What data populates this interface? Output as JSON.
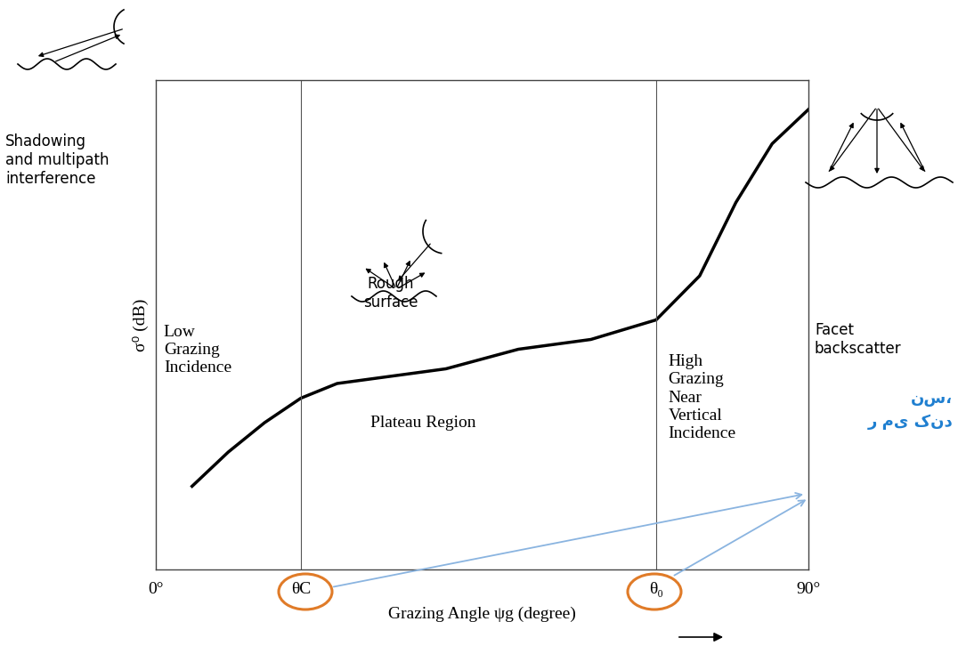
{
  "chart_data": {
    "type": "line",
    "x": [
      5,
      10,
      15,
      20,
      25,
      30,
      40,
      50,
      60,
      69,
      75,
      80,
      85,
      90
    ],
    "values": [
      1.7,
      2.4,
      3.0,
      3.5,
      3.8,
      3.9,
      4.1,
      4.5,
      4.7,
      5.1,
      6.0,
      7.5,
      8.7,
      9.4
    ],
    "color": "#000000",
    "xlim": [
      0,
      90
    ],
    "ylim": [
      0,
      10
    ],
    "xticks": [
      {
        "value": 0,
        "label": "0°"
      },
      {
        "value": 20,
        "label": "θC"
      },
      {
        "value": 69,
        "label": "θ₀"
      },
      {
        "value": 90,
        "label": "90°"
      }
    ],
    "tick_labels": "x",
    "x_label": "Grazing Angle ψg (degree)",
    "y_label": "σ⁰ (dB)",
    "annotations": [
      {
        "text": "Low\nGrazing\nIncidence"
      },
      {
        "text": "Plateau Region"
      },
      {
        "text": "High\nGrazing\nNear\nVertical\nIncidence"
      },
      {
        "text": "Rough\nsurface"
      },
      {
        "text": "Facet\nbackscatter"
      },
      {
        "text": "Shadowing\nand multipath\ninterference"
      },
      {
        "text": "نس،"
      },
      {
        "text": "ر می کند"
      }
    ]
  }
}
